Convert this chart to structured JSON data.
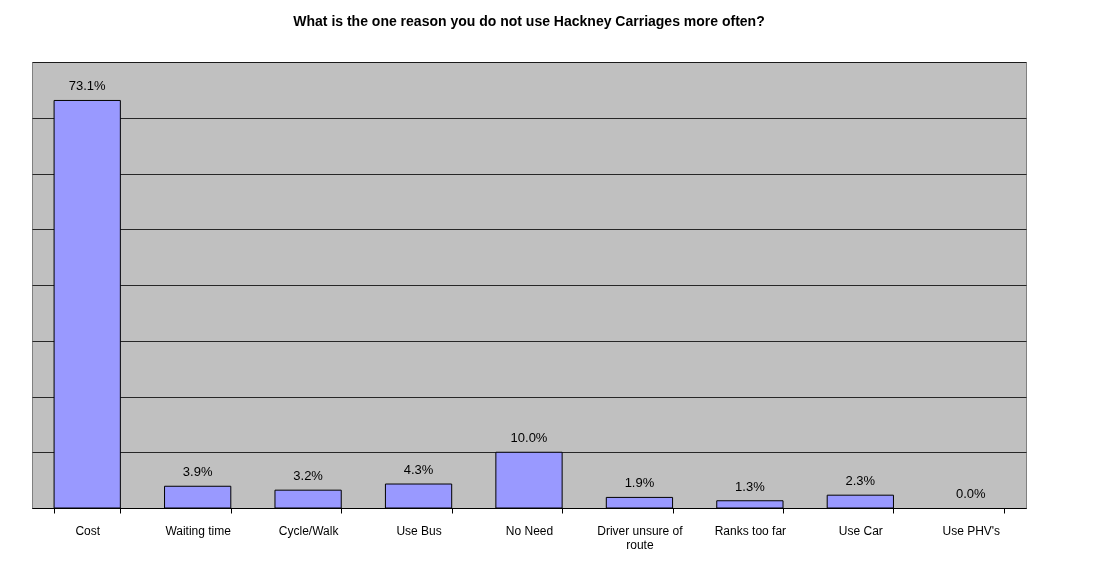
{
  "chart_data": {
    "type": "bar",
    "title": "What is the one reason you do not use Hackney Carriages more often?",
    "categories": [
      "Cost",
      "Waiting time",
      "Cycle/Walk",
      "Use Bus",
      "No Need",
      "Driver unsure of route",
      "Ranks too far",
      "Use Car",
      "Use PHV's"
    ],
    "values": [
      73.1,
      3.9,
      3.2,
      4.3,
      10.0,
      1.9,
      1.3,
      2.3,
      0.0
    ],
    "value_labels": [
      "73.1%",
      "3.9%",
      "3.2%",
      "4.3%",
      "10.0%",
      "1.9%",
      "1.3%",
      "2.3%",
      "0.0%"
    ],
    "color": "#9999ff",
    "ylim": [
      0,
      80
    ],
    "yticks": [
      {
        "value": 0,
        "label": null
      },
      {
        "value": 10,
        "label": null
      },
      {
        "value": 20,
        "label": null
      },
      {
        "value": 30,
        "label": null
      },
      {
        "value": 40,
        "label": null
      },
      {
        "value": 50,
        "label": null
      },
      {
        "value": 60,
        "label": null
      },
      {
        "value": 70,
        "label": null
      },
      {
        "value": 80,
        "label": null
      }
    ],
    "grid": "y",
    "tick_labels": "x"
  }
}
